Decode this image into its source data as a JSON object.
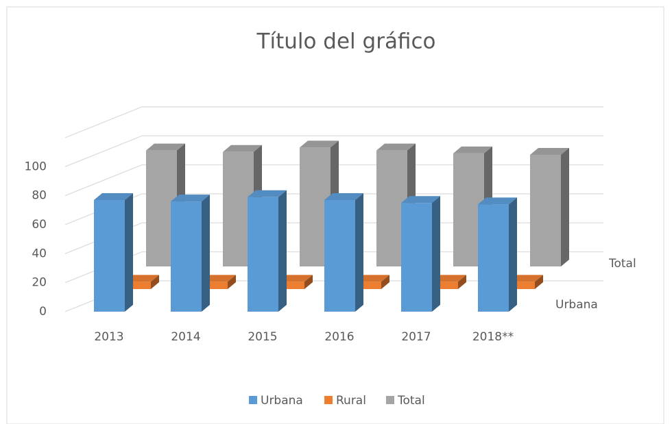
{
  "chart_data": {
    "type": "bar3d",
    "title": "Título del gráfico",
    "categories": [
      "2013",
      "2014",
      "2015",
      "2016",
      "2017",
      "2018**"
    ],
    "series": [
      {
        "name": "Urbana",
        "color": "#5b9bd5",
        "values": [
          77,
          76,
          79,
          77,
          75,
          74
        ]
      },
      {
        "name": "Rural",
        "color": "#ed7d31",
        "values": [
          5,
          5,
          5,
          5,
          5,
          5
        ]
      },
      {
        "name": "Total",
        "color": "#a5a5a5",
        "values": [
          80,
          79,
          82,
          80,
          78,
          77
        ]
      }
    ],
    "ylim": [
      0,
      120
    ],
    "yticks": [
      0,
      20,
      40,
      60,
      80,
      100
    ],
    "grid": true,
    "legend": "bottom"
  }
}
